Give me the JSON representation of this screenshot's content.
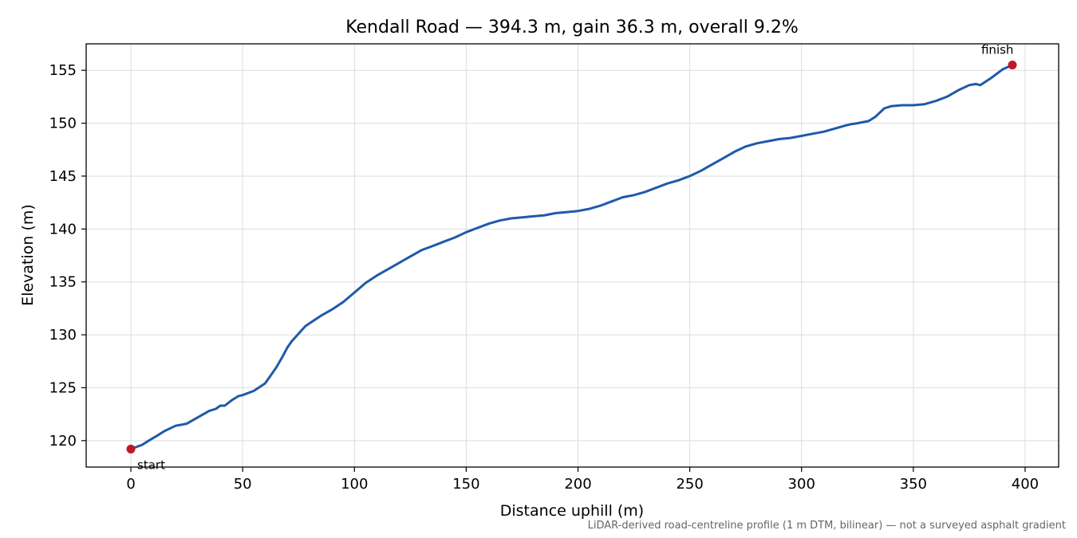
{
  "chart_data": {
    "type": "line",
    "title": "Kendall Road — 394.3 m, gain 36.3 m, overall 9.2%",
    "xlabel": "Distance uphill (m)",
    "ylabel": "Elevation (m)",
    "xlim": [
      -20,
      415
    ],
    "ylim": [
      117.5,
      157.5
    ],
    "xticks": [
      0,
      50,
      100,
      150,
      200,
      250,
      300,
      350,
      400
    ],
    "yticks": [
      120,
      125,
      130,
      135,
      140,
      145,
      150,
      155
    ],
    "grid": true,
    "line_color": "#1f5aa8",
    "marker_color": "#c0182a",
    "series": [
      {
        "x": [
          0,
          5,
          8,
          12,
          15,
          17,
          20,
          25,
          30,
          35,
          38,
          40,
          42,
          45,
          48,
          50,
          55,
          60,
          62,
          65,
          68,
          70,
          72,
          75,
          78,
          80,
          85,
          90,
          95,
          100,
          105,
          110,
          115,
          120,
          125,
          130,
          135,
          140,
          145,
          150,
          155,
          160,
          165,
          170,
          175,
          180,
          185,
          190,
          195,
          200,
          205,
          210,
          215,
          220,
          225,
          230,
          235,
          240,
          245,
          250,
          255,
          260,
          265,
          270,
          275,
          280,
          285,
          290,
          295,
          300,
          305,
          310,
          315,
          320,
          322,
          325,
          330,
          333,
          335,
          337,
          340,
          345,
          350,
          355,
          360,
          365,
          370,
          375,
          378,
          380,
          385,
          390,
          394.3
        ],
        "y": [
          119.2,
          119.6,
          120.0,
          120.5,
          120.9,
          121.1,
          121.4,
          121.6,
          122.2,
          122.8,
          123.0,
          123.3,
          123.3,
          123.8,
          124.2,
          124.3,
          124.7,
          125.4,
          126.0,
          126.9,
          128.0,
          128.8,
          129.4,
          130.1,
          130.8,
          131.1,
          131.8,
          132.4,
          133.1,
          134.0,
          134.9,
          135.6,
          136.2,
          136.8,
          137.4,
          138.0,
          138.4,
          138.8,
          139.2,
          139.7,
          140.1,
          140.5,
          140.8,
          141.0,
          141.1,
          141.2,
          141.3,
          141.5,
          141.6,
          141.7,
          141.9,
          142.2,
          142.6,
          143.0,
          143.2,
          143.5,
          143.9,
          144.3,
          144.6,
          145.0,
          145.5,
          146.1,
          146.7,
          147.3,
          147.8,
          148.1,
          148.3,
          148.5,
          148.6,
          148.8,
          149.0,
          149.2,
          149.5,
          149.8,
          149.9,
          150.0,
          150.2,
          150.6,
          151.0,
          151.4,
          151.6,
          151.7,
          151.7,
          151.8,
          152.1,
          152.5,
          153.1,
          153.6,
          153.7,
          153.6,
          154.3,
          155.1,
          155.5
        ]
      }
    ],
    "annotations": [
      {
        "label": "start",
        "x": 0,
        "y": 119.2
      },
      {
        "label": "finish",
        "x": 394.3,
        "y": 155.5
      }
    ]
  },
  "footnote": "LiDAR-derived road-centreline profile (1 m DTM, bilinear) — not a surveyed asphalt gradient"
}
